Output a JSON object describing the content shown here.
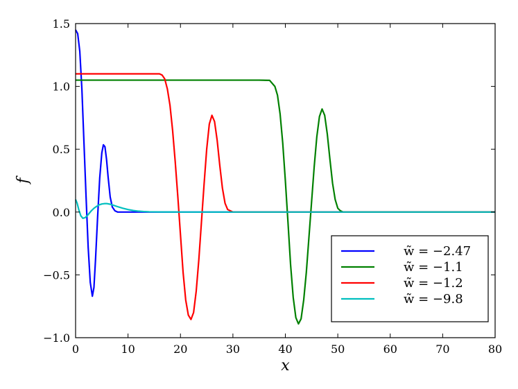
{
  "chart_data": {
    "type": "line",
    "title": "",
    "xlabel": "x",
    "ylabel": "f",
    "xlim": [
      0,
      80
    ],
    "ylim": [
      -1.0,
      1.5
    ],
    "xticks": [
      0,
      10,
      20,
      30,
      40,
      50,
      60,
      70,
      80
    ],
    "yticks": [
      -1.0,
      -0.5,
      0.0,
      0.5,
      1.0,
      1.5
    ],
    "xtick_labels": [
      "0",
      "10",
      "20",
      "30",
      "40",
      "50",
      "60",
      "70",
      "80"
    ],
    "ytick_labels": [
      "−1.0",
      "−0.5",
      "0.0",
      "0.5",
      "1.0",
      "1.5"
    ],
    "grid": false,
    "legend_position": "bottom-right",
    "series": [
      {
        "name": "w̃ = −2.47",
        "color": "#0000ff",
        "x": [
          0,
          0.4,
          0.8,
          1.2,
          1.6,
          2.0,
          2.4,
          2.8,
          3.2,
          3.5,
          3.8,
          4.2,
          4.6,
          5.0,
          5.3,
          5.6,
          5.9,
          6.2,
          6.6,
          7.0,
          7.5,
          8.0,
          9.0,
          10,
          12,
          15,
          80
        ],
        "y": [
          1.45,
          1.42,
          1.28,
          0.98,
          0.55,
          0.12,
          -0.28,
          -0.56,
          -0.67,
          -0.6,
          -0.38,
          -0.04,
          0.27,
          0.47,
          0.535,
          0.52,
          0.42,
          0.28,
          0.12,
          0.04,
          0.01,
          0.0,
          0.0,
          0.0,
          0.0,
          0.0,
          0.0
        ]
      },
      {
        "name": "w̃ = −1.1",
        "color": "#008000",
        "x": [
          0,
          10,
          20,
          30,
          35,
          37,
          38,
          38.5,
          39,
          39.5,
          40,
          40.5,
          41,
          41.5,
          42,
          42.5,
          43,
          43.5,
          44,
          44.5,
          45,
          45.5,
          46,
          46.5,
          47,
          47.5,
          48,
          48.5,
          49,
          49.5,
          50,
          50.5,
          51,
          52,
          60,
          70,
          80
        ],
        "y": [
          1.05,
          1.05,
          1.05,
          1.05,
          1.05,
          1.048,
          1.0,
          0.93,
          0.78,
          0.55,
          0.25,
          -0.08,
          -0.42,
          -0.68,
          -0.84,
          -0.89,
          -0.85,
          -0.7,
          -0.48,
          -0.2,
          0.08,
          0.36,
          0.6,
          0.76,
          0.82,
          0.77,
          0.62,
          0.42,
          0.23,
          0.1,
          0.03,
          0.01,
          0.0,
          0.0,
          0.0,
          0.0,
          0.0
        ]
      },
      {
        "name": "w̃ = −1.2",
        "color": "#ff0000",
        "x": [
          0,
          5,
          10,
          14,
          15,
          16,
          16.5,
          17,
          17.5,
          18,
          18.5,
          19,
          19.5,
          20,
          20.5,
          21,
          21.5,
          22,
          22.5,
          23,
          23.5,
          24,
          24.5,
          25,
          25.5,
          26,
          26.5,
          27,
          27.5,
          28,
          28.5,
          29,
          30,
          40,
          60,
          80
        ],
        "y": [
          1.1,
          1.1,
          1.1,
          1.1,
          1.1,
          1.1,
          1.09,
          1.06,
          0.98,
          0.85,
          0.65,
          0.4,
          0.12,
          -0.18,
          -0.48,
          -0.7,
          -0.82,
          -0.855,
          -0.8,
          -0.63,
          -0.38,
          -0.08,
          0.22,
          0.5,
          0.7,
          0.77,
          0.72,
          0.57,
          0.37,
          0.19,
          0.07,
          0.02,
          0.0,
          0.0,
          0.0,
          0.0
        ]
      },
      {
        "name": "w̃ = −9.8",
        "color": "#00bfbf",
        "x": [
          0,
          0.3,
          0.6,
          1.0,
          1.4,
          1.8,
          2.2,
          2.6,
          3.0,
          3.5,
          4.0,
          4.5,
          5.0,
          5.5,
          6.0,
          6.5,
          7.0,
          7.5,
          8.0,
          9.0,
          10,
          11,
          12,
          13,
          14,
          16,
          20,
          40,
          80
        ],
        "y": [
          0.1,
          0.07,
          0.02,
          -0.03,
          -0.05,
          -0.045,
          -0.03,
          -0.01,
          0.01,
          0.03,
          0.045,
          0.057,
          0.064,
          0.067,
          0.067,
          0.063,
          0.057,
          0.05,
          0.043,
          0.03,
          0.02,
          0.012,
          0.007,
          0.004,
          0.002,
          0.0005,
          0.0,
          0.0,
          0.0
        ]
      }
    ]
  }
}
